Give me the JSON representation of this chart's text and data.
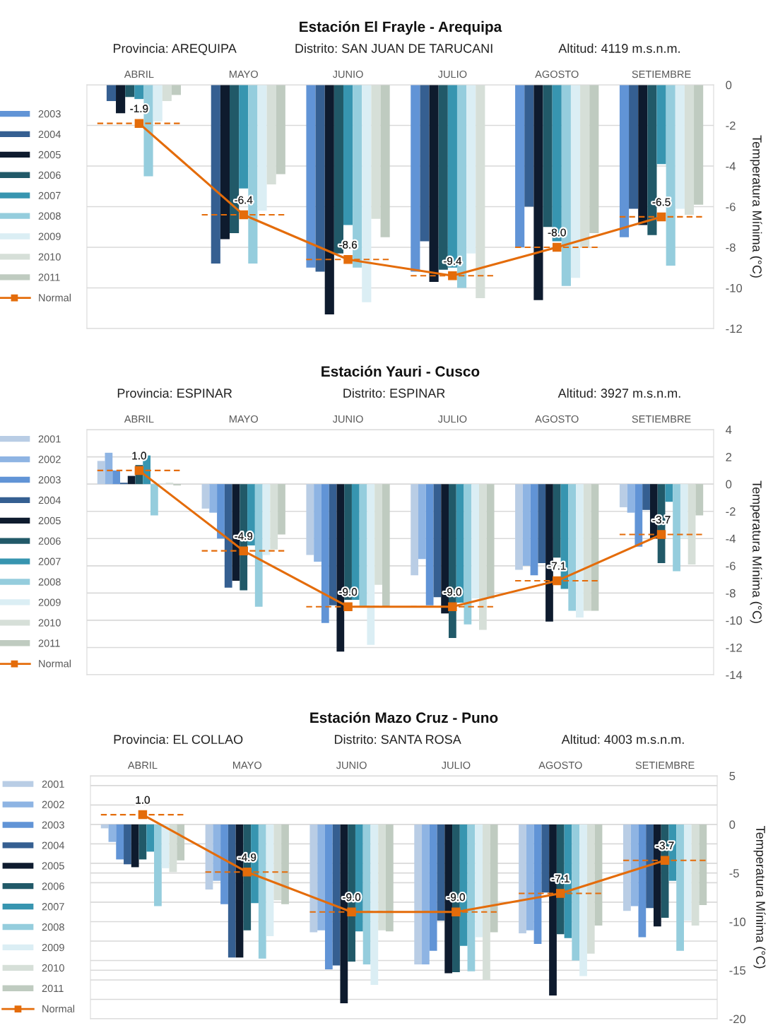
{
  "chart_data": [
    {
      "type": "bar",
      "title": "Estación El Frayle - Arequipa",
      "annotations": [
        "Provincia: AREQUIPA",
        "Distrito: SAN JUAN DE TARUCANI",
        "Altitud: 4119 m.s.n.m."
      ],
      "ylabel": "Temperatura Mínima (°C)",
      "categories": [
        "ABRIL",
        "MAYO",
        "JUNIO",
        "JULIO",
        "AGOSTO",
        "SETIEMBRE"
      ],
      "ylim": [
        -12,
        0
      ],
      "yticks": [
        0,
        -2,
        -4,
        -6,
        -8,
        -10,
        -12
      ],
      "grid": "y",
      "legend": "left",
      "marker": "square",
      "line_style": "solid",
      "series": [
        {
          "name": "2003",
          "color": "#6194d6",
          "values": [
            null,
            null,
            -9.0,
            -9.2,
            -8.0,
            -7.5
          ]
        },
        {
          "name": "2004",
          "color": "#355f91",
          "values": [
            -0.8,
            -8.8,
            -9.2,
            -7.7,
            -6.0,
            -6.1
          ]
        },
        {
          "name": "2005",
          "color": "#0e1b2e",
          "values": [
            -1.4,
            -7.6,
            -11.3,
            -9.7,
            -10.6,
            -6.9
          ]
        },
        {
          "name": "2006",
          "color": "#215968",
          "values": [
            -0.6,
            -7.3,
            -8.3,
            -9.1,
            -7.0,
            -7.4
          ]
        },
        {
          "name": "2007",
          "color": "#3795b0",
          "values": [
            -0.7,
            -5.1,
            -6.9,
            -9.0,
            -7.7,
            -3.9
          ]
        },
        {
          "name": "2008",
          "color": "#95cddd",
          "values": [
            -4.5,
            -8.8,
            -9.0,
            -10.0,
            -9.9,
            -8.9
          ]
        },
        {
          "name": "2009",
          "color": "#dbeef4",
          "values": [
            -1.8,
            -6.2,
            -10.7,
            -8.3,
            -9.5,
            -6.1
          ]
        },
        {
          "name": "2010",
          "color": "#d6dfd8",
          "values": [
            -0.8,
            -4.9,
            -6.6,
            -10.5,
            -8.0,
            -6.4
          ]
        },
        {
          "name": "2011",
          "color": "#bfcbc0",
          "values": [
            -0.5,
            -4.4,
            -7.5,
            null,
            -7.3,
            -5.9
          ]
        },
        {
          "name": "Normal",
          "type": "line",
          "color": "#e46c0a",
          "values": [
            -1.9,
            -6.4,
            -8.6,
            -9.4,
            -8.0,
            -6.5
          ],
          "value_labels": [
            "-1.9",
            "-6.4",
            "-8.6",
            "-9.4",
            "-8.0",
            "-6.5"
          ]
        }
      ]
    },
    {
      "type": "bar",
      "title": "Estación Yauri - Cusco",
      "annotations": [
        "Provincia: ESPINAR",
        "Distrito: ESPINAR",
        "Altitud: 3927 m.s.n.m."
      ],
      "ylabel": "Temperatura Mínima (°C)",
      "categories": [
        "ABRIL",
        "MAYO",
        "JUNIO",
        "JULIO",
        "AGOSTO",
        "SETIEMBRE"
      ],
      "ylim": [
        -14,
        4
      ],
      "yticks": [
        4,
        2,
        0,
        -2,
        -4,
        -6,
        -8,
        -10,
        -12,
        -14
      ],
      "grid": "y",
      "legend": "left",
      "marker": "square",
      "line_style": "solid",
      "series": [
        {
          "name": "2001",
          "color": "#b9cde5",
          "values": [
            1.7,
            -1.8,
            -5.2,
            -6.7,
            -6.3,
            -1.7
          ]
        },
        {
          "name": "2002",
          "color": "#8eb4e3",
          "values": [
            2.3,
            -2.1,
            -5.7,
            -5.5,
            -6.0,
            -2.1
          ]
        },
        {
          "name": "2003",
          "color": "#6194d6",
          "values": [
            1.0,
            -4.0,
            -10.2,
            -8.9,
            -6.7,
            -4.6
          ]
        },
        {
          "name": "2004",
          "color": "#355f91",
          "values": [
            0.1,
            -7.6,
            -8.9,
            -8.3,
            -5.8,
            -1.9
          ]
        },
        {
          "name": "2005",
          "color": "#0e1b2e",
          "values": [
            0.6,
            -7.1,
            -12.3,
            -9.5,
            -10.1,
            -4.0
          ]
        },
        {
          "name": "2006",
          "color": "#215968",
          "values": [
            1.4,
            -7.8,
            -8.5,
            -11.3,
            -5.4,
            -5.8
          ]
        },
        {
          "name": "2007",
          "color": "#3795b0",
          "values": [
            2.1,
            -4.5,
            -8.5,
            -8.7,
            -7.7,
            -1.3
          ]
        },
        {
          "name": "2008",
          "color": "#95cddd",
          "values": [
            -2.3,
            -9.0,
            -9.0,
            -10.3,
            -9.3,
            -6.4
          ]
        },
        {
          "name": "2009",
          "color": "#dbeef4",
          "values": [
            null,
            -5.2,
            -11.8,
            -8.4,
            -9.8,
            -4.0
          ]
        },
        {
          "name": "2010",
          "color": "#d6dfd8",
          "values": [
            0.1,
            -4.8,
            -7.4,
            -10.7,
            -9.3,
            -5.9
          ]
        },
        {
          "name": "2011",
          "color": "#bfcbc0",
          "values": [
            -0.1,
            -3.7,
            -9.0,
            -8.4,
            -9.3,
            -2.3
          ]
        },
        {
          "name": "Normal",
          "type": "line",
          "color": "#e46c0a",
          "values": [
            1.0,
            -4.9,
            -9.0,
            -9.0,
            -7.1,
            -3.7
          ],
          "value_labels": [
            "1.0",
            "-4.9",
            "-9.0",
            "-9.0",
            "-7.1",
            "-3.7"
          ]
        }
      ]
    },
    {
      "type": "bar",
      "title": "Estación Mazo Cruz - Puno",
      "annotations": [
        "Provincia: EL COLLAO",
        "Distrito: SANTA ROSA",
        "Altitud: 4003 m.s.n.m."
      ],
      "ylabel": "Temperatura Mínima (°C)",
      "categories": [
        "ABRIL",
        "MAYO",
        "JUNIO",
        "JULIO",
        "AGOSTO",
        "SETIEMBRE"
      ],
      "ylim": [
        -20,
        5
      ],
      "yticks": [
        5,
        {
          "value": 4,
          "label": null
        },
        {
          "value": 2,
          "label": null
        },
        0,
        {
          "value": -2,
          "label": null
        },
        {
          "value": -4,
          "label": null
        },
        -5,
        {
          "value": -6,
          "label": null
        },
        {
          "value": -8,
          "label": null
        },
        -10,
        {
          "value": -12,
          "label": null
        },
        {
          "value": -14,
          "label": null
        },
        -15,
        {
          "value": -16,
          "label": null
        },
        {
          "value": -18,
          "label": null
        },
        -20
      ],
      "grid": "y",
      "legend": "left",
      "marker": "square",
      "line_style": "solid",
      "series": [
        {
          "name": "2001",
          "color": "#b9cde5",
          "values": [
            -0.4,
            -6.7,
            -11.1,
            -14.4,
            -11.2,
            -8.9
          ]
        },
        {
          "name": "2002",
          "color": "#8eb4e3",
          "values": [
            -1.8,
            -5.8,
            -10.9,
            -14.4,
            -10.9,
            -8.4
          ]
        },
        {
          "name": "2003",
          "color": "#6194d6",
          "values": [
            -3.6,
            -8.2,
            -14.9,
            -13.0,
            -12.3,
            -11.6
          ]
        },
        {
          "name": "2004",
          "color": "#355f91",
          "values": [
            -4.1,
            -13.7,
            -14.5,
            -9.9,
            -7.0,
            -8.6
          ]
        },
        {
          "name": "2005",
          "color": "#0e1b2e",
          "values": [
            -4.4,
            -13.7,
            -18.4,
            -15.3,
            -17.6,
            -10.5
          ]
        },
        {
          "name": "2006",
          "color": "#215968",
          "values": [
            -3.6,
            -10.9,
            -14.1,
            -15.2,
            -11.3,
            -9.6
          ]
        },
        {
          "name": "2007",
          "color": "#3795b0",
          "values": [
            -2.8,
            -8.1,
            -11.0,
            -12.5,
            -11.7,
            -5.8
          ]
        },
        {
          "name": "2008",
          "color": "#95cddd",
          "values": [
            -8.4,
            -13.8,
            -14.4,
            -15.1,
            -14.0,
            -13.0
          ]
        },
        {
          "name": "2009",
          "color": "#dbeef4",
          "values": [
            -4.5,
            -11.5,
            -16.5,
            -11.6,
            -15.6,
            -9.9
          ]
        },
        {
          "name": "2010",
          "color": "#d6dfd8",
          "values": [
            -4.9,
            -7.8,
            -10.9,
            -16.0,
            -13.3,
            -10.4
          ]
        },
        {
          "name": "2011",
          "color": "#bfcbc0",
          "values": [
            -3.7,
            -8.2,
            -11.0,
            -11.1,
            -10.4,
            -8.3
          ]
        },
        {
          "name": "Normal",
          "type": "line",
          "color": "#e46c0a",
          "values": [
            1.0,
            -4.9,
            -9.0,
            -9.0,
            -7.1,
            -3.7
          ],
          "value_labels": [
            "1.0",
            "-4.9",
            "-9.0",
            "-9.0",
            "-7.1",
            "-3.7"
          ]
        }
      ]
    }
  ]
}
